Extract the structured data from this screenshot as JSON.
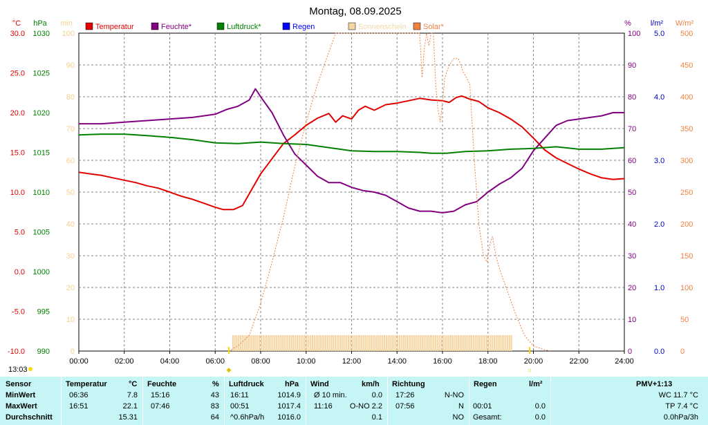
{
  "chart_data": {
    "type": "line",
    "title": "Montag, 08.09.2025",
    "x_range": [
      "00:00",
      "24:00"
    ],
    "x_ticks": [
      "00:00",
      "02:00",
      "04:00",
      "06:00",
      "08:00",
      "10:00",
      "12:00",
      "14:00",
      "16:00",
      "18:00",
      "20:00",
      "22:00",
      "24:00"
    ],
    "grid": true,
    "legend_placement": "top",
    "axes": {
      "temperature": {
        "unit": "°C",
        "ticks": [
          "30.0",
          "25.0",
          "20.0",
          "15.0",
          "10.0",
          "5.0",
          "0.0",
          "-5.0",
          "-10.0"
        ],
        "range": [
          -10,
          30
        ],
        "color": "#e00000"
      },
      "pressure": {
        "unit": "hPa",
        "ticks": [
          "1030",
          "1025",
          "1020",
          "1015",
          "1010",
          "1005",
          "1000",
          "995",
          "990"
        ],
        "range": [
          990,
          1030
        ],
        "color": "#008000"
      },
      "sunshine": {
        "unit": "min",
        "ticks": [
          "100",
          "90",
          "80",
          "70",
          "60",
          "50",
          "40",
          "30",
          "20",
          "10",
          "0"
        ],
        "range": [
          0,
          100
        ],
        "color": "#f5d090"
      },
      "humidity": {
        "unit": "%",
        "ticks": [
          "100",
          "90",
          "80",
          "70",
          "60",
          "50",
          "40",
          "30",
          "20",
          "10",
          "0"
        ],
        "range": [
          0,
          100
        ],
        "color": "#800080"
      },
      "rain": {
        "unit": "l/m²",
        "ticks": [
          "5.0",
          "4.0",
          "3.0",
          "2.0",
          "1.0",
          "0.0"
        ],
        "range": [
          0,
          5
        ],
        "color": "#0000c0"
      },
      "solar": {
        "unit": "W/m²",
        "ticks": [
          "500",
          "450",
          "400",
          "350",
          "300",
          "250",
          "200",
          "150",
          "100",
          "50",
          "0"
        ],
        "range": [
          0,
          500
        ],
        "color": "#f08040"
      }
    },
    "legend": [
      {
        "name": "Temperatur",
        "color": "#e00000"
      },
      {
        "name": "Feuchte*",
        "color": "#800080"
      },
      {
        "name": "Luftdruck*",
        "color": "#008000"
      },
      {
        "name": "Regen",
        "color": "#0000ff"
      },
      {
        "name": "Sonnenschein",
        "color": "#f5d5a0",
        "label_color": "#f0d8a8"
      },
      {
        "name": "Solar*",
        "color": "#f08040"
      }
    ],
    "series": [
      {
        "name": "Temperatur",
        "axis": "temperature",
        "x": [
          0,
          0.5,
          1,
          1.5,
          2,
          2.5,
          3,
          3.5,
          4,
          4.5,
          5,
          5.5,
          6,
          6.36,
          6.8,
          7.2,
          7.6,
          8,
          8.5,
          9,
          9.5,
          10,
          10.5,
          11,
          11.3,
          11.6,
          12,
          12.3,
          12.6,
          13,
          13.5,
          14,
          14.5,
          15,
          15.5,
          16,
          16.3,
          16.6,
          16.85,
          17.2,
          17.6,
          18,
          18.5,
          19,
          19.5,
          20,
          20.5,
          21,
          21.5,
          22,
          22.5,
          23,
          23.5,
          24
        ],
        "values": [
          12.5,
          12.3,
          12.1,
          11.8,
          11.5,
          11.2,
          10.8,
          10.5,
          10.0,
          9.5,
          9.1,
          8.6,
          8.1,
          7.8,
          7.8,
          8.3,
          10.3,
          12.3,
          14.2,
          16.1,
          17.2,
          18.4,
          19.3,
          19.9,
          18.8,
          19.6,
          19.2,
          20.3,
          20.8,
          20.3,
          21.0,
          21.2,
          21.5,
          21.8,
          21.6,
          21.5,
          21.3,
          21.9,
          22.1,
          21.7,
          21.4,
          20.6,
          20.0,
          19.2,
          18.2,
          16.8,
          15.3,
          14.3,
          13.6,
          12.9,
          12.3,
          11.8,
          11.6,
          11.7
        ]
      },
      {
        "name": "Feuchte*",
        "axis": "humidity",
        "x": [
          0,
          1,
          2,
          3,
          4,
          5,
          5.5,
          6,
          6.5,
          7,
          7.5,
          7.77,
          8,
          8.5,
          9,
          9.5,
          10,
          10.5,
          11,
          11.5,
          12,
          12.5,
          13,
          13.5,
          14,
          14.5,
          15,
          15.26,
          15.5,
          16,
          16.5,
          17,
          17.5,
          18,
          18.5,
          19,
          19.5,
          20,
          20.5,
          21,
          21.5,
          22,
          22.5,
          23,
          23.5,
          24
        ],
        "values": [
          71.5,
          71.5,
          72,
          72.5,
          73,
          73.5,
          74,
          74.5,
          76,
          77,
          79,
          82.5,
          80,
          75,
          68,
          62,
          58.5,
          55,
          53,
          53,
          51.5,
          50.5,
          50,
          49,
          47,
          45,
          44,
          44,
          44,
          43.5,
          44,
          46,
          47,
          50,
          52.5,
          54.5,
          57.5,
          63,
          67,
          71,
          72.5,
          73,
          73.5,
          74,
          75,
          75
        ]
      },
      {
        "name": "Luftdruck*",
        "axis": "pressure",
        "x": [
          0,
          1,
          2,
          3,
          4,
          5,
          6,
          7,
          8,
          9,
          10,
          11,
          12,
          13,
          14,
          15,
          15.5,
          16,
          16.18,
          17,
          18,
          19,
          20,
          21,
          22,
          23,
          24
        ],
        "values": [
          1017.2,
          1017.3,
          1017.3,
          1017.1,
          1016.9,
          1016.6,
          1016.2,
          1016.1,
          1016.3,
          1016.1,
          1016.0,
          1015.6,
          1015.2,
          1015.1,
          1015.1,
          1015.0,
          1014.9,
          1014.9,
          1014.9,
          1015.1,
          1015.2,
          1015.4,
          1015.5,
          1015.7,
          1015.4,
          1015.4,
          1015.6
        ]
      },
      {
        "name": "Solar*",
        "axis": "solar",
        "dotted": true,
        "x": [
          6.6,
          7,
          7.5,
          8,
          8.5,
          9,
          9.5,
          10,
          10.5,
          11,
          11.3,
          11.5,
          11.7,
          15,
          15.1,
          15.2,
          15.3,
          15.4,
          15.5,
          15.6,
          15.7,
          15.8,
          15.9,
          16,
          16.1,
          16.3,
          16.5,
          16.7,
          16.9,
          17.2,
          17.4,
          17.6,
          17.8,
          17.95,
          18.1,
          18.2,
          18.35,
          18.5,
          18.8,
          19.2,
          19.6,
          20,
          20.5,
          20.8
        ],
        "values": [
          0,
          8,
          25,
          75,
          140,
          210,
          290,
          360,
          420,
          470,
          500,
          500,
          500,
          500,
          430,
          475,
          500,
          480,
          500,
          500,
          420,
          380,
          360,
          390,
          430,
          450,
          460,
          460,
          440,
          420,
          300,
          200,
          150,
          140,
          170,
          180,
          150,
          130,
          100,
          60,
          25,
          8,
          2,
          0
        ]
      }
    ],
    "sunshine_bars": {
      "from": "06:45",
      "to": "19:05",
      "value_min": 5
    },
    "markers": [
      {
        "time": "06:36",
        "label": "◆"
      },
      {
        "time": "19:50",
        "label": "☼"
      }
    ],
    "corner_time": "13:03"
  },
  "table": {
    "headers": {
      "sensor": "Sensor",
      "temp": "Temperatur",
      "temp_unit": "°C",
      "hum": "Feuchte",
      "hum_unit": "%",
      "press": "Luftdruck",
      "press_unit": "hPa",
      "wind": "Wind",
      "wind_unit": "km/h",
      "dir": "Richtung",
      "rain": "Regen",
      "rain_unit": "l/m²",
      "pmv": "PMV+1:13"
    },
    "rows": [
      {
        "label": "MinWert",
        "temp_time": "06:36",
        "temp": "7.8",
        "hum_time": "15:16",
        "hum": "43",
        "press_time": "16:11",
        "press": "1014.9",
        "wind_label": "Ø 10 min.",
        "wind": "0.0",
        "dir_time": "17:26",
        "dir": "N-NO",
        "rain_time": "",
        "rain": "",
        "pmv": "WC 11.7 °C"
      },
      {
        "label": "MaxWert",
        "temp_time": "16:51",
        "temp": "22.1",
        "hum_time": "07:46",
        "hum": "83",
        "press_time": "00:51",
        "press": "1017.4",
        "wind_label": "11:16",
        "wind": "O-NO 2.2",
        "dir_time": "07:56",
        "dir": "N",
        "rain_time": "00:01",
        "rain": "0.0",
        "pmv": "TP 7.4 °C"
      },
      {
        "label": "Durchschnitt",
        "temp_time": "",
        "temp": "15.31",
        "hum_time": "",
        "hum": "64",
        "press_time": "^0.6hPa/h",
        "press": "1016.0",
        "wind_label": "",
        "wind": "0.1",
        "dir_time": "",
        "dir": "NO",
        "rain_time": "Gesamt:",
        "rain": "0.0",
        "pmv": "0.0hPa/3h"
      }
    ]
  }
}
